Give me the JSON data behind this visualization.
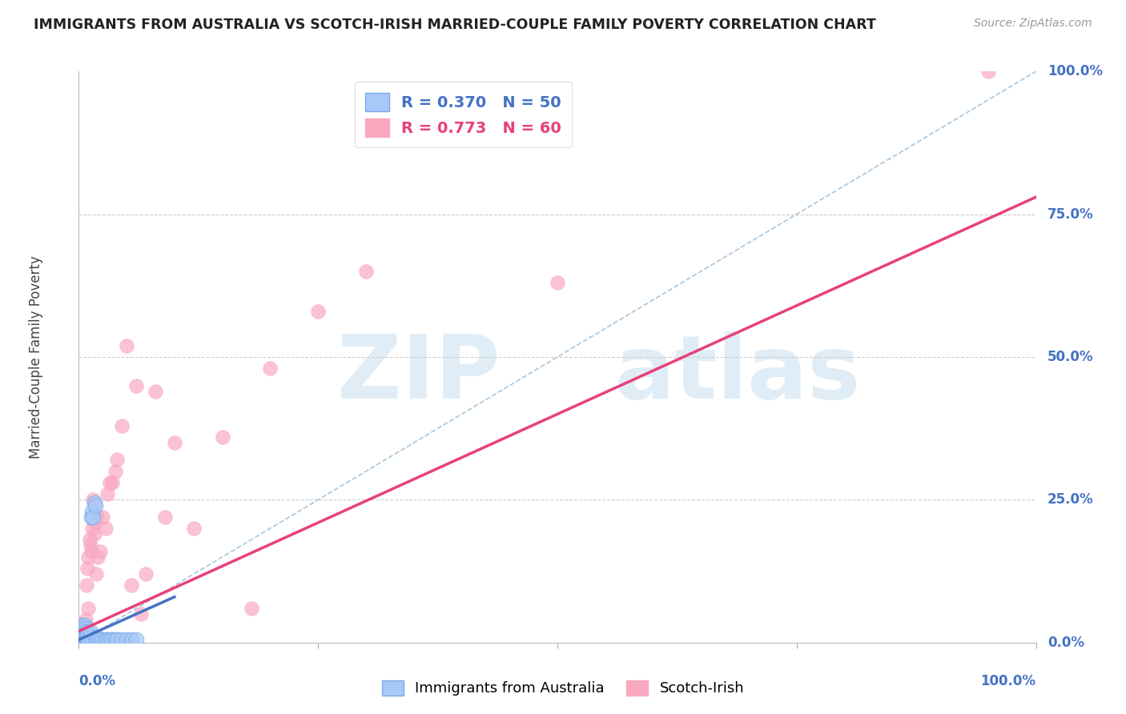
{
  "title": "IMMIGRANTS FROM AUSTRALIA VS SCOTCH-IRISH MARRIED-COUPLE FAMILY POVERTY CORRELATION CHART",
  "source": "Source: ZipAtlas.com",
  "ylabel": "Married-Couple Family Poverty",
  "ylabel_right_labels": [
    "0.0%",
    "25.0%",
    "50.0%",
    "75.0%",
    "100.0%"
  ],
  "ylabel_right_positions": [
    0.0,
    0.25,
    0.5,
    0.75,
    1.0
  ],
  "legend_entries": [
    {
      "label": "R = 0.370   N = 50",
      "color": "#a8c8f8"
    },
    {
      "label": "R = 0.773   N = 60",
      "color": "#f9a8c0"
    }
  ],
  "legend_labels": [
    "Immigrants from Australia",
    "Scotch-Irish"
  ],
  "australia_color": "#a8c8f8",
  "australia_line_color": "#4472c4",
  "scotch_irish_color": "#f9a8c0",
  "scotch_irish_line_color": "#e8407a",
  "trend_dashed_color": "#90b8d8",
  "background_color": "#ffffff",
  "xlim": [
    0.0,
    1.0
  ],
  "ylim": [
    0.0,
    1.0
  ],
  "aus_x": [
    0.001,
    0.001,
    0.002,
    0.002,
    0.002,
    0.003,
    0.003,
    0.003,
    0.003,
    0.004,
    0.004,
    0.004,
    0.005,
    0.005,
    0.005,
    0.006,
    0.006,
    0.006,
    0.007,
    0.007,
    0.007,
    0.007,
    0.008,
    0.008,
    0.009,
    0.009,
    0.01,
    0.01,
    0.011,
    0.012,
    0.013,
    0.014,
    0.015,
    0.016,
    0.017,
    0.018,
    0.019,
    0.02,
    0.022,
    0.025,
    0.028,
    0.03,
    0.032,
    0.035,
    0.038,
    0.04,
    0.045,
    0.05,
    0.055,
    0.06
  ],
  "aus_y": [
    0.01,
    0.02,
    0.01,
    0.015,
    0.02,
    0.005,
    0.01,
    0.02,
    0.03,
    0.01,
    0.015,
    0.025,
    0.005,
    0.01,
    0.02,
    0.01,
    0.015,
    0.03,
    0.005,
    0.01,
    0.015,
    0.025,
    0.01,
    0.02,
    0.01,
    0.02,
    0.005,
    0.015,
    0.01,
    0.02,
    0.22,
    0.23,
    0.22,
    0.245,
    0.24,
    0.005,
    0.01,
    0.005,
    0.005,
    0.005,
    0.005,
    0.005,
    0.005,
    0.005,
    0.005,
    0.005,
    0.005,
    0.005,
    0.005,
    0.005
  ],
  "si_x": [
    0.001,
    0.001,
    0.002,
    0.002,
    0.003,
    0.003,
    0.003,
    0.004,
    0.004,
    0.004,
    0.005,
    0.005,
    0.005,
    0.006,
    0.006,
    0.007,
    0.007,
    0.007,
    0.008,
    0.008,
    0.009,
    0.009,
    0.01,
    0.01,
    0.01,
    0.011,
    0.012,
    0.013,
    0.014,
    0.015,
    0.016,
    0.017,
    0.018,
    0.019,
    0.02,
    0.022,
    0.025,
    0.028,
    0.03,
    0.032,
    0.035,
    0.038,
    0.04,
    0.045,
    0.05,
    0.055,
    0.06,
    0.065,
    0.07,
    0.08,
    0.09,
    0.1,
    0.12,
    0.15,
    0.18,
    0.2,
    0.25,
    0.3,
    0.5,
    0.95
  ],
  "si_y": [
    0.005,
    0.01,
    0.005,
    0.02,
    0.01,
    0.015,
    0.02,
    0.005,
    0.01,
    0.025,
    0.01,
    0.015,
    0.03,
    0.01,
    0.02,
    0.005,
    0.015,
    0.04,
    0.02,
    0.1,
    0.015,
    0.13,
    0.02,
    0.06,
    0.15,
    0.18,
    0.17,
    0.16,
    0.2,
    0.25,
    0.19,
    0.21,
    0.12,
    0.22,
    0.15,
    0.16,
    0.22,
    0.2,
    0.26,
    0.28,
    0.28,
    0.3,
    0.32,
    0.38,
    0.52,
    0.1,
    0.45,
    0.05,
    0.12,
    0.44,
    0.22,
    0.35,
    0.2,
    0.36,
    0.06,
    0.48,
    0.58,
    0.65,
    0.63,
    1.0
  ],
  "aus_line_x": [
    0.0,
    0.1
  ],
  "aus_line_y": [
    0.005,
    0.08
  ],
  "si_line_x": [
    0.0,
    1.0
  ],
  "si_line_y": [
    0.02,
    0.78
  ],
  "dashed_line_x": [
    0.0,
    1.0
  ],
  "dashed_line_y": [
    0.0,
    1.0
  ]
}
